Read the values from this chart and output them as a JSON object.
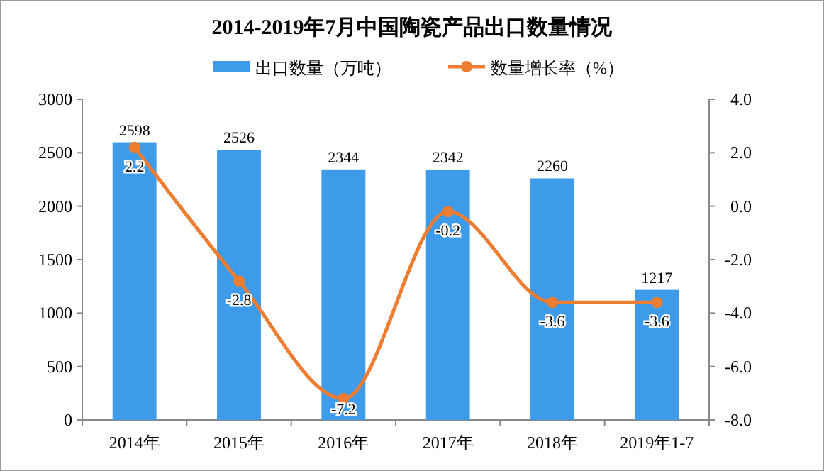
{
  "chart_data": {
    "type": "bar",
    "title": "2014-2019年7月中国陶瓷产品出口数量情况",
    "categories": [
      "2014年",
      "2015年",
      "2016年",
      "2017年",
      "2018年",
      "2019年1-7"
    ],
    "series": [
      {
        "name": "出口数量（万吨）",
        "color": "#3d9be9",
        "values": [
          2598,
          2526,
          2344,
          2342,
          2260,
          1217
        ]
      },
      {
        "name": "数量增长率（%）",
        "type": "line",
        "axis": "y2",
        "color": "#ed7d31",
        "marker": "circle",
        "values": [
          2.2,
          -2.8,
          -7.2,
          -0.2,
          -3.6,
          -3.6
        ]
      }
    ],
    "ylim": [
      0,
      3000
    ],
    "yticks": [
      0,
      500,
      1000,
      1500,
      2000,
      2500,
      3000
    ],
    "y2lim": [
      -8,
      4
    ],
    "y2ticks": [
      {
        "value": -8,
        "label": "-8.0"
      },
      {
        "value": -6,
        "label": "-6.0"
      },
      {
        "value": -4,
        "label": "-4.0"
      },
      {
        "value": -2,
        "label": "-2.0"
      },
      {
        "value": 0,
        "label": "0.0"
      },
      {
        "value": 2,
        "label": "2.0"
      },
      {
        "value": 4,
        "label": "4.0"
      }
    ],
    "data_labels": true,
    "grid": false,
    "legend": "top"
  }
}
